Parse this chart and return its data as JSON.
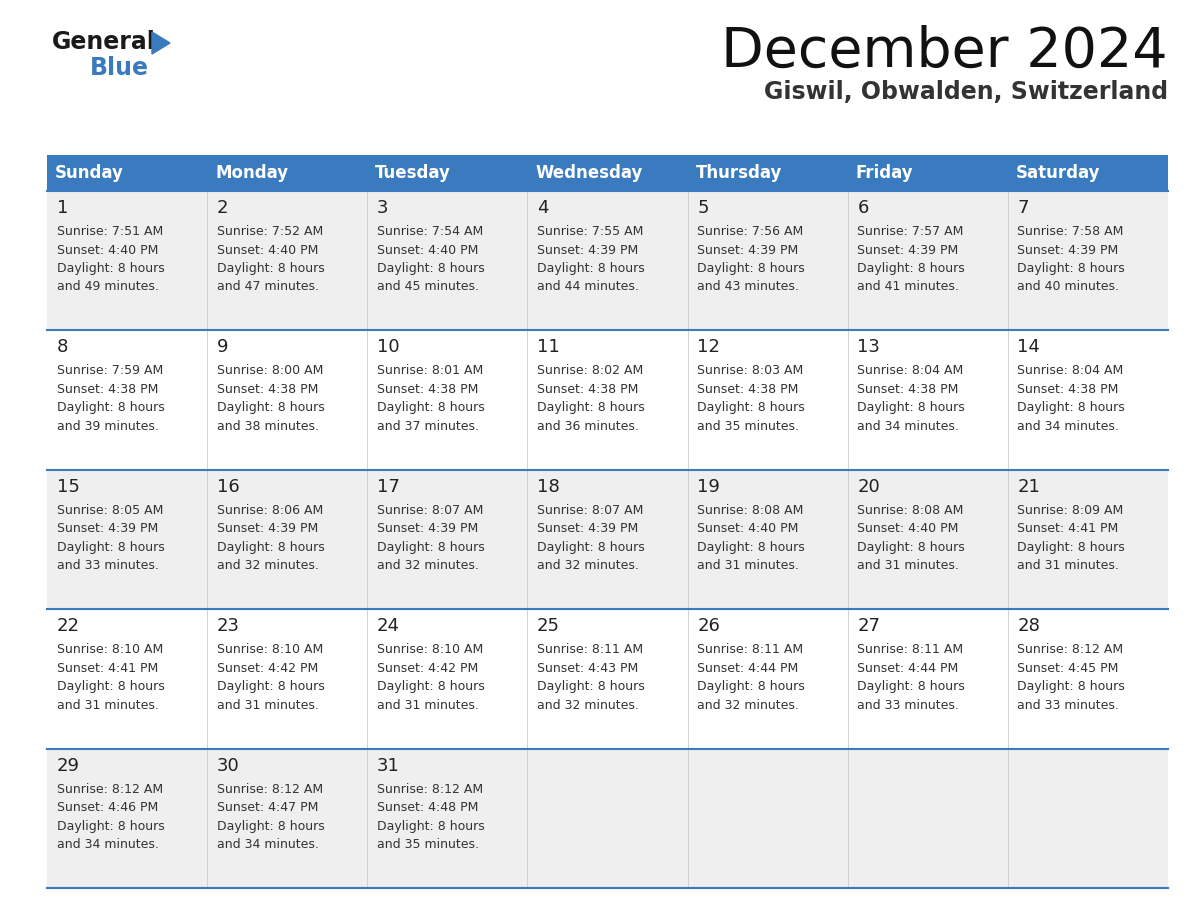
{
  "title": "December 2024",
  "subtitle": "Giswil, Obwalden, Switzerland",
  "header_color": "#3a7abf",
  "header_text_color": "#ffffff",
  "row_bg_odd": "#efefef",
  "row_bg_even": "#ffffff",
  "border_color": "#3a7abf",
  "separator_color": "#3a7abf",
  "text_color": "#333333",
  "day_number_color": "#222222",
  "day_names": [
    "Sunday",
    "Monday",
    "Tuesday",
    "Wednesday",
    "Thursday",
    "Friday",
    "Saturday"
  ],
  "weeks": [
    [
      {
        "day": 1,
        "sunrise": "7:51 AM",
        "sunset": "4:40 PM",
        "daylight": "8 hours and 49 minutes."
      },
      {
        "day": 2,
        "sunrise": "7:52 AM",
        "sunset": "4:40 PM",
        "daylight": "8 hours and 47 minutes."
      },
      {
        "day": 3,
        "sunrise": "7:54 AM",
        "sunset": "4:40 PM",
        "daylight": "8 hours and 45 minutes."
      },
      {
        "day": 4,
        "sunrise": "7:55 AM",
        "sunset": "4:39 PM",
        "daylight": "8 hours and 44 minutes."
      },
      {
        "day": 5,
        "sunrise": "7:56 AM",
        "sunset": "4:39 PM",
        "daylight": "8 hours and 43 minutes."
      },
      {
        "day": 6,
        "sunrise": "7:57 AM",
        "sunset": "4:39 PM",
        "daylight": "8 hours and 41 minutes."
      },
      {
        "day": 7,
        "sunrise": "7:58 AM",
        "sunset": "4:39 PM",
        "daylight": "8 hours and 40 minutes."
      }
    ],
    [
      {
        "day": 8,
        "sunrise": "7:59 AM",
        "sunset": "4:38 PM",
        "daylight": "8 hours and 39 minutes."
      },
      {
        "day": 9,
        "sunrise": "8:00 AM",
        "sunset": "4:38 PM",
        "daylight": "8 hours and 38 minutes."
      },
      {
        "day": 10,
        "sunrise": "8:01 AM",
        "sunset": "4:38 PM",
        "daylight": "8 hours and 37 minutes."
      },
      {
        "day": 11,
        "sunrise": "8:02 AM",
        "sunset": "4:38 PM",
        "daylight": "8 hours and 36 minutes."
      },
      {
        "day": 12,
        "sunrise": "8:03 AM",
        "sunset": "4:38 PM",
        "daylight": "8 hours and 35 minutes."
      },
      {
        "day": 13,
        "sunrise": "8:04 AM",
        "sunset": "4:38 PM",
        "daylight": "8 hours and 34 minutes."
      },
      {
        "day": 14,
        "sunrise": "8:04 AM",
        "sunset": "4:38 PM",
        "daylight": "8 hours and 34 minutes."
      }
    ],
    [
      {
        "day": 15,
        "sunrise": "8:05 AM",
        "sunset": "4:39 PM",
        "daylight": "8 hours and 33 minutes."
      },
      {
        "day": 16,
        "sunrise": "8:06 AM",
        "sunset": "4:39 PM",
        "daylight": "8 hours and 32 minutes."
      },
      {
        "day": 17,
        "sunrise": "8:07 AM",
        "sunset": "4:39 PM",
        "daylight": "8 hours and 32 minutes."
      },
      {
        "day": 18,
        "sunrise": "8:07 AM",
        "sunset": "4:39 PM",
        "daylight": "8 hours and 32 minutes."
      },
      {
        "day": 19,
        "sunrise": "8:08 AM",
        "sunset": "4:40 PM",
        "daylight": "8 hours and 31 minutes."
      },
      {
        "day": 20,
        "sunrise": "8:08 AM",
        "sunset": "4:40 PM",
        "daylight": "8 hours and 31 minutes."
      },
      {
        "day": 21,
        "sunrise": "8:09 AM",
        "sunset": "4:41 PM",
        "daylight": "8 hours and 31 minutes."
      }
    ],
    [
      {
        "day": 22,
        "sunrise": "8:10 AM",
        "sunset": "4:41 PM",
        "daylight": "8 hours and 31 minutes."
      },
      {
        "day": 23,
        "sunrise": "8:10 AM",
        "sunset": "4:42 PM",
        "daylight": "8 hours and 31 minutes."
      },
      {
        "day": 24,
        "sunrise": "8:10 AM",
        "sunset": "4:42 PM",
        "daylight": "8 hours and 31 minutes."
      },
      {
        "day": 25,
        "sunrise": "8:11 AM",
        "sunset": "4:43 PM",
        "daylight": "8 hours and 32 minutes."
      },
      {
        "day": 26,
        "sunrise": "8:11 AM",
        "sunset": "4:44 PM",
        "daylight": "8 hours and 32 minutes."
      },
      {
        "day": 27,
        "sunrise": "8:11 AM",
        "sunset": "4:44 PM",
        "daylight": "8 hours and 33 minutes."
      },
      {
        "day": 28,
        "sunrise": "8:12 AM",
        "sunset": "4:45 PM",
        "daylight": "8 hours and 33 minutes."
      }
    ],
    [
      {
        "day": 29,
        "sunrise": "8:12 AM",
        "sunset": "4:46 PM",
        "daylight": "8 hours and 34 minutes."
      },
      {
        "day": 30,
        "sunrise": "8:12 AM",
        "sunset": "4:47 PM",
        "daylight": "8 hours and 34 minutes."
      },
      {
        "day": 31,
        "sunrise": "8:12 AM",
        "sunset": "4:48 PM",
        "daylight": "8 hours and 35 minutes."
      },
      null,
      null,
      null,
      null
    ]
  ],
  "logo_text1": "General",
  "logo_text2": "Blue",
  "logo_color1": "#1a1a1a",
  "logo_color2": "#3a7abf",
  "logo_triangle_color": "#3a7abf",
  "fig_width": 11.88,
  "fig_height": 9.18,
  "dpi": 100
}
